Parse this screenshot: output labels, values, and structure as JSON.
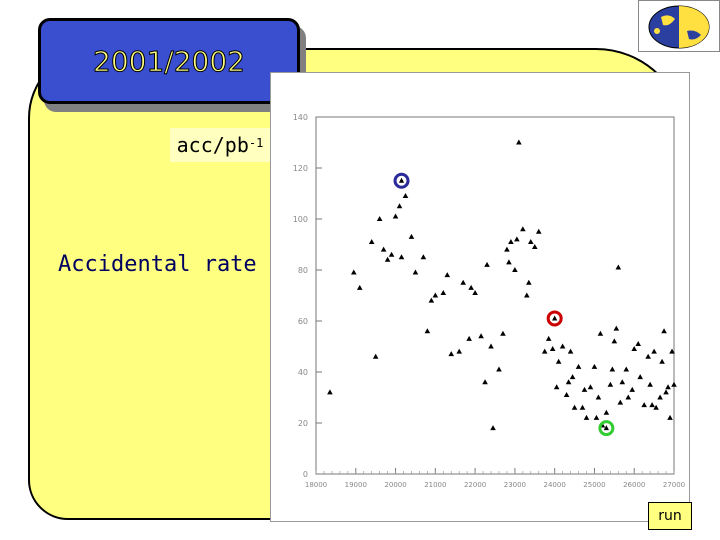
{
  "header": {
    "year_label": "2001/2002"
  },
  "sidebar": {
    "title": "Accidental rate",
    "ylabel_main": "acc/pb",
    "ylabel_sup": "-1"
  },
  "footer": {
    "xlabel": "run"
  },
  "colors": {
    "panel": "#ffff80",
    "title_box": "#3a4fd0",
    "marker_blue": "#2a2a9a",
    "marker_red": "#cc0000",
    "marker_green": "#33cc33"
  },
  "logo": {
    "icon": "globe-logo-icon"
  },
  "chart_data": {
    "type": "scatter",
    "xlabel": "run",
    "ylabel": "acc/pb-1",
    "xlim": [
      18000,
      27000
    ],
    "ylim": [
      0,
      140
    ],
    "yticks": [
      0,
      20,
      40,
      60,
      80,
      100,
      120,
      140
    ],
    "xticks": [
      18000,
      19000,
      20000,
      21000,
      22000,
      23000,
      24000,
      25000,
      26000,
      27000
    ],
    "ytick_labels": [
      "0",
      "20",
      "40",
      "60",
      "80",
      "100",
      "120",
      "140"
    ],
    "xtick_labels": [
      "18000",
      "19000",
      "20000",
      "21000",
      "22000",
      "23000",
      "24000",
      "25000",
      "26000",
      "27000"
    ],
    "grid": false,
    "series": [
      {
        "values": [
          {
            "x": 18350,
            "y": 32
          },
          {
            "x": 18950,
            "y": 79
          },
          {
            "x": 19100,
            "y": 73
          },
          {
            "x": 19400,
            "y": 91
          },
          {
            "x": 19500,
            "y": 46
          },
          {
            "x": 19600,
            "y": 100
          },
          {
            "x": 19700,
            "y": 88
          },
          {
            "x": 19800,
            "y": 84
          },
          {
            "x": 19900,
            "y": 86
          },
          {
            "x": 20000,
            "y": 101
          },
          {
            "x": 20100,
            "y": 105
          },
          {
            "x": 20150,
            "y": 85
          },
          {
            "x": 20250,
            "y": 109
          },
          {
            "x": 20400,
            "y": 93
          },
          {
            "x": 20500,
            "y": 79
          },
          {
            "x": 20700,
            "y": 85
          },
          {
            "x": 20800,
            "y": 56
          },
          {
            "x": 20900,
            "y": 68
          },
          {
            "x": 21000,
            "y": 70
          },
          {
            "x": 21200,
            "y": 71
          },
          {
            "x": 21300,
            "y": 78
          },
          {
            "x": 21400,
            "y": 47
          },
          {
            "x": 21600,
            "y": 48
          },
          {
            "x": 21700,
            "y": 75
          },
          {
            "x": 21850,
            "y": 53
          },
          {
            "x": 21900,
            "y": 73
          },
          {
            "x": 22000,
            "y": 71
          },
          {
            "x": 22150,
            "y": 54
          },
          {
            "x": 22250,
            "y": 36
          },
          {
            "x": 22300,
            "y": 82
          },
          {
            "x": 22400,
            "y": 50
          },
          {
            "x": 22450,
            "y": 18
          },
          {
            "x": 22600,
            "y": 41
          },
          {
            "x": 22700,
            "y": 55
          },
          {
            "x": 22800,
            "y": 88
          },
          {
            "x": 22850,
            "y": 83
          },
          {
            "x": 22900,
            "y": 91
          },
          {
            "x": 23000,
            "y": 80
          },
          {
            "x": 23050,
            "y": 92
          },
          {
            "x": 23100,
            "y": 130
          },
          {
            "x": 23200,
            "y": 96
          },
          {
            "x": 23300,
            "y": 70
          },
          {
            "x": 23350,
            "y": 75
          },
          {
            "x": 23400,
            "y": 91
          },
          {
            "x": 23500,
            "y": 89
          },
          {
            "x": 23600,
            "y": 95
          },
          {
            "x": 23750,
            "y": 48
          },
          {
            "x": 23850,
            "y": 53
          },
          {
            "x": 23950,
            "y": 49
          },
          {
            "x": 24050,
            "y": 34
          },
          {
            "x": 24100,
            "y": 44
          },
          {
            "x": 24200,
            "y": 50
          },
          {
            "x": 24300,
            "y": 31
          },
          {
            "x": 24350,
            "y": 36
          },
          {
            "x": 24400,
            "y": 48
          },
          {
            "x": 24450,
            "y": 38
          },
          {
            "x": 24500,
            "y": 26
          },
          {
            "x": 24600,
            "y": 42
          },
          {
            "x": 24700,
            "y": 26
          },
          {
            "x": 24750,
            "y": 33
          },
          {
            "x": 24800,
            "y": 22
          },
          {
            "x": 24900,
            "y": 34
          },
          {
            "x": 25000,
            "y": 42
          },
          {
            "x": 25050,
            "y": 22
          },
          {
            "x": 25100,
            "y": 30
          },
          {
            "x": 25150,
            "y": 55
          },
          {
            "x": 25200,
            "y": 19
          },
          {
            "x": 25300,
            "y": 24
          },
          {
            "x": 25400,
            "y": 35
          },
          {
            "x": 25450,
            "y": 41
          },
          {
            "x": 25500,
            "y": 52
          },
          {
            "x": 25550,
            "y": 57
          },
          {
            "x": 25600,
            "y": 81
          },
          {
            "x": 25650,
            "y": 28
          },
          {
            "x": 25700,
            "y": 36
          },
          {
            "x": 25800,
            "y": 41
          },
          {
            "x": 25850,
            "y": 30
          },
          {
            "x": 25950,
            "y": 33
          },
          {
            "x": 26000,
            "y": 49
          },
          {
            "x": 26100,
            "y": 51
          },
          {
            "x": 26150,
            "y": 38
          },
          {
            "x": 26250,
            "y": 27
          },
          {
            "x": 26350,
            "y": 46
          },
          {
            "x": 26400,
            "y": 35
          },
          {
            "x": 26450,
            "y": 27
          },
          {
            "x": 26500,
            "y": 48
          },
          {
            "x": 26550,
            "y": 26
          },
          {
            "x": 26650,
            "y": 30
          },
          {
            "x": 26750,
            "y": 56
          },
          {
            "x": 26800,
            "y": 32
          },
          {
            "x": 26850,
            "y": 34
          },
          {
            "x": 26900,
            "y": 22
          },
          {
            "x": 26950,
            "y": 48
          },
          {
            "x": 27000,
            "y": 35
          },
          {
            "x": 26700,
            "y": 44
          }
        ]
      }
    ],
    "highlighted_points": [
      {
        "x": 20150,
        "y": 115,
        "color": "#2a2a9a"
      },
      {
        "x": 24000,
        "y": 61,
        "color": "#cc0000"
      },
      {
        "x": 25300,
        "y": 18,
        "color": "#33cc33"
      }
    ]
  }
}
